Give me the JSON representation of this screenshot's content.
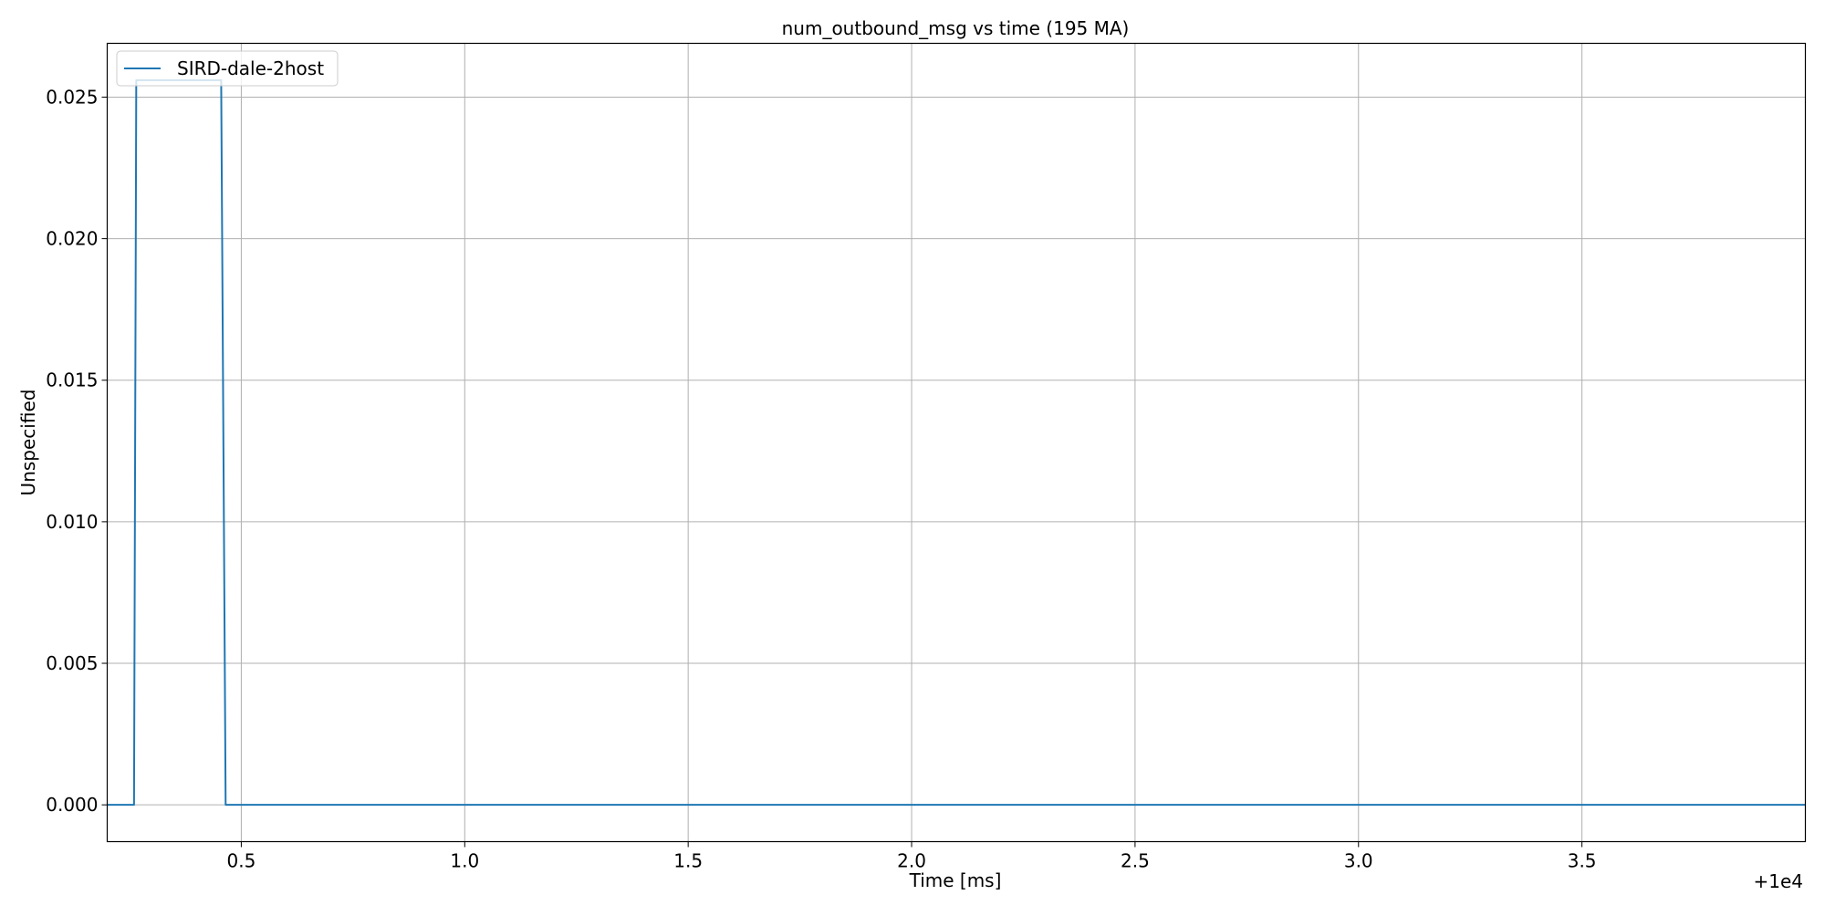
{
  "chart_data": {
    "type": "line",
    "title": "num_outbound_msg vs time (195 MA)",
    "xlabel": "Time [ms]",
    "ylabel": "Unspecified",
    "x_offset_label": "+1e4",
    "xlim": [
      0.2,
      4.0
    ],
    "ylim": [
      -0.0013,
      0.0269
    ],
    "x_ticks": [
      0.5,
      1.0,
      1.5,
      2.0,
      2.5,
      3.0,
      3.5
    ],
    "x_tick_labels": [
      "0.5",
      "1.0",
      "1.5",
      "2.0",
      "2.5",
      "3.0",
      "3.5"
    ],
    "y_ticks": [
      0.0,
      0.005,
      0.01,
      0.015,
      0.02,
      0.025
    ],
    "y_tick_labels": [
      "0.000",
      "0.005",
      "0.010",
      "0.015",
      "0.020",
      "0.025"
    ],
    "grid": true,
    "legend": {
      "placement": "top-left"
    },
    "series": [
      {
        "name": "SIRD-dale-2host",
        "color": "#1f77b4",
        "x": [
          0.2,
          0.26,
          0.265,
          0.455,
          0.465,
          4.0
        ],
        "y": [
          0.0,
          0.0,
          0.0256,
          0.0256,
          0.0,
          0.0
        ]
      }
    ]
  }
}
